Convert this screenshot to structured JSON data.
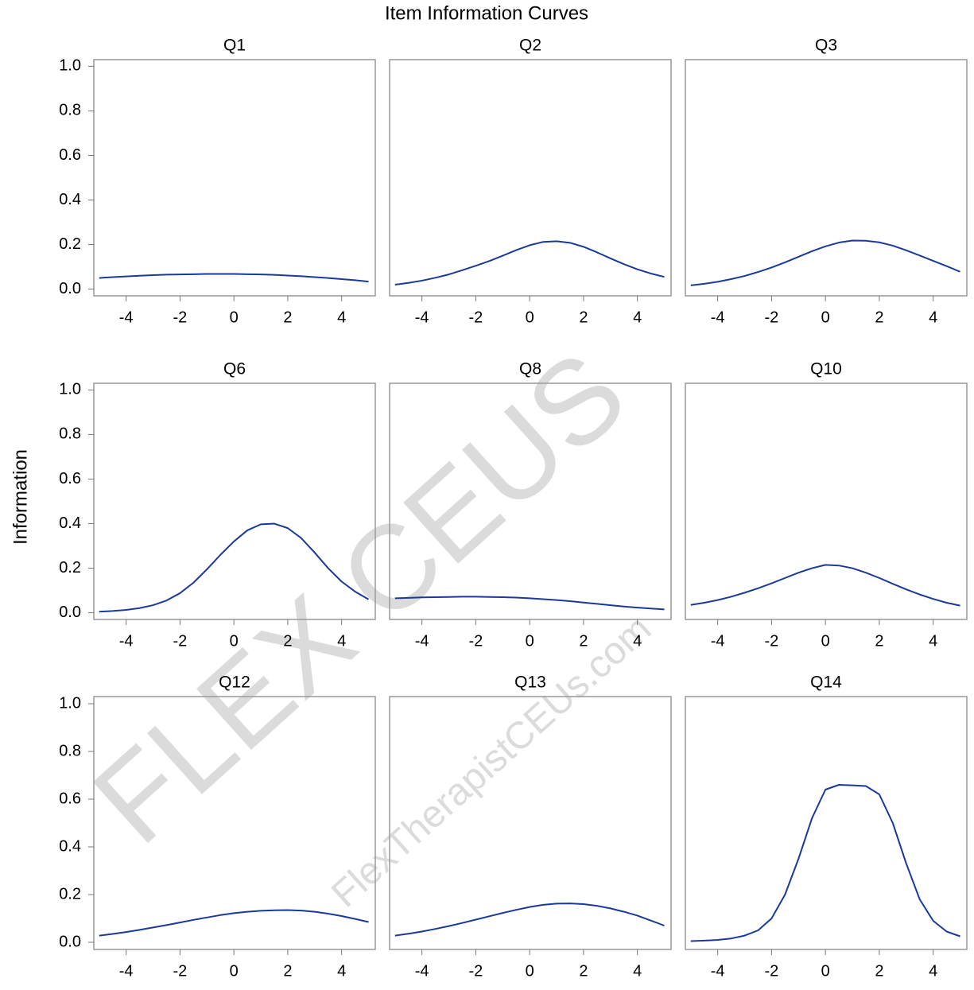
{
  "title": "Item Information Curves",
  "y_label": "Information",
  "watermark": {
    "brand": "FLEX CEUS",
    "site": "FlexTherapistCEUs.com"
  },
  "chart_data": [
    {
      "type": "line",
      "title": "Q1",
      "color": "#1a3a9a",
      "x": [
        -5,
        -4.5,
        -4,
        -3.5,
        -3,
        -2.5,
        -2,
        -1.5,
        -1,
        -0.5,
        0,
        0.5,
        1,
        1.5,
        2,
        2.5,
        3,
        3.5,
        4,
        4.5,
        5
      ],
      "values": [
        0.05,
        0.054,
        0.057,
        0.06,
        0.063,
        0.065,
        0.066,
        0.067,
        0.068,
        0.068,
        0.068,
        0.067,
        0.066,
        0.064,
        0.061,
        0.058,
        0.054,
        0.05,
        0.045,
        0.04,
        0.034
      ],
      "xlim": [
        -5.2,
        5.25
      ],
      "ylim": [
        -0.03,
        1.03
      ],
      "xticks": [
        -4,
        -2,
        0,
        2,
        4
      ],
      "yticks": [
        {
          "value": 0,
          "label": "0.0"
        },
        0.2,
        0.4,
        0.6,
        0.8,
        {
          "value": 1,
          "label": "1.0"
        }
      ]
    },
    {
      "type": "line",
      "title": "Q2",
      "color": "#1a3a9a",
      "x": [
        -5,
        -4.5,
        -4,
        -3.5,
        -3,
        -2.5,
        -2,
        -1.5,
        -1,
        -0.5,
        0,
        0.5,
        1,
        1.5,
        2,
        2.5,
        3,
        3.5,
        4,
        4.5,
        5
      ],
      "values": [
        0.02,
        0.028,
        0.038,
        0.051,
        0.066,
        0.085,
        0.105,
        0.126,
        0.15,
        0.175,
        0.197,
        0.212,
        0.215,
        0.208,
        0.19,
        0.165,
        0.138,
        0.112,
        0.089,
        0.07,
        0.055
      ],
      "xlim": [
        -5.2,
        5.25
      ],
      "ylim": [
        -0.03,
        1.03
      ],
      "xticks": [
        -4,
        -2,
        0,
        2,
        4
      ]
    },
    {
      "type": "line",
      "title": "Q3",
      "color": "#1a3a9a",
      "x": [
        -5,
        -4.5,
        -4,
        -3.5,
        -3,
        -2.5,
        -2,
        -1.5,
        -1,
        -0.5,
        0,
        0.5,
        1,
        1.5,
        2,
        2.5,
        3,
        3.5,
        4,
        4.5,
        5
      ],
      "values": [
        0.017,
        0.024,
        0.033,
        0.045,
        0.059,
        0.077,
        0.097,
        0.12,
        0.145,
        0.17,
        0.192,
        0.209,
        0.218,
        0.217,
        0.21,
        0.195,
        0.174,
        0.151,
        0.127,
        0.103,
        0.078
      ],
      "xlim": [
        -5.2,
        5.25
      ],
      "ylim": [
        -0.03,
        1.03
      ],
      "xticks": [
        -4,
        -2,
        0,
        2,
        4
      ]
    },
    {
      "type": "line",
      "title": "Q6",
      "color": "#1a3a9a",
      "x": [
        -5,
        -4.5,
        -4,
        -3.5,
        -3,
        -2.5,
        -2,
        -1.5,
        -1,
        -0.5,
        0,
        0.5,
        1,
        1.5,
        2,
        2.5,
        3,
        3.5,
        4,
        4.5,
        5
      ],
      "values": [
        0.005,
        0.008,
        0.013,
        0.021,
        0.034,
        0.055,
        0.088,
        0.135,
        0.195,
        0.26,
        0.32,
        0.37,
        0.397,
        0.4,
        0.38,
        0.335,
        0.27,
        0.2,
        0.14,
        0.095,
        0.06
      ],
      "xlim": [
        -5.2,
        5.25
      ],
      "ylim": [
        -0.03,
        1.03
      ],
      "xticks": [
        -4,
        -2,
        0,
        2,
        4
      ],
      "yticks": [
        {
          "value": 0,
          "label": "0.0"
        },
        0.2,
        0.4,
        0.6,
        0.8,
        {
          "value": 1,
          "label": "1.0"
        }
      ]
    },
    {
      "type": "line",
      "title": "Q8",
      "color": "#1a3a9a",
      "x": [
        -5,
        -4.5,
        -4,
        -3.5,
        -3,
        -2.5,
        -2,
        -1.5,
        -1,
        -0.5,
        0,
        0.5,
        1,
        1.5,
        2,
        2.5,
        3,
        3.5,
        4,
        4.5,
        5
      ],
      "values": [
        0.065,
        0.067,
        0.069,
        0.07,
        0.071,
        0.072,
        0.072,
        0.071,
        0.07,
        0.068,
        0.065,
        0.061,
        0.057,
        0.052,
        0.046,
        0.04,
        0.034,
        0.028,
        0.023,
        0.019,
        0.015
      ],
      "xlim": [
        -5.2,
        5.25
      ],
      "ylim": [
        -0.03,
        1.03
      ],
      "xticks": [
        -4,
        -2,
        0,
        2,
        4
      ]
    },
    {
      "type": "line",
      "title": "Q10",
      "color": "#1a3a9a",
      "x": [
        -5,
        -4.5,
        -4,
        -3.5,
        -3,
        -2.5,
        -2,
        -1.5,
        -1,
        -0.5,
        0,
        0.5,
        1,
        1.5,
        2,
        2.5,
        3,
        3.5,
        4,
        4.5,
        5
      ],
      "values": [
        0.035,
        0.045,
        0.057,
        0.072,
        0.09,
        0.11,
        0.132,
        0.156,
        0.18,
        0.2,
        0.215,
        0.212,
        0.2,
        0.18,
        0.156,
        0.13,
        0.105,
        0.082,
        0.062,
        0.045,
        0.032
      ],
      "xlim": [
        -5.2,
        5.25
      ],
      "ylim": [
        -0.03,
        1.03
      ],
      "xticks": [
        -4,
        -2,
        0,
        2,
        4
      ]
    },
    {
      "type": "line",
      "title": "Q12",
      "color": "#1a3a9a",
      "x": [
        -5,
        -4.5,
        -4,
        -3.5,
        -3,
        -2.5,
        -2,
        -1.5,
        -1,
        -0.5,
        0,
        0.5,
        1,
        1.5,
        2,
        2.5,
        3,
        3.5,
        4,
        4.5,
        5
      ],
      "values": [
        0.028,
        0.035,
        0.043,
        0.052,
        0.062,
        0.072,
        0.083,
        0.094,
        0.104,
        0.114,
        0.122,
        0.128,
        0.132,
        0.134,
        0.135,
        0.133,
        0.128,
        0.12,
        0.11,
        0.098,
        0.085
      ],
      "xlim": [
        -5.2,
        5.25
      ],
      "ylim": [
        -0.03,
        1.03
      ],
      "xticks": [
        -4,
        -2,
        0,
        2,
        4
      ],
      "yticks": [
        {
          "value": 0,
          "label": "0.0"
        },
        0.2,
        0.4,
        0.6,
        0.8,
        {
          "value": 1,
          "label": "1.0"
        }
      ]
    },
    {
      "type": "line",
      "title": "Q13",
      "color": "#1a3a9a",
      "x": [
        -5,
        -4.5,
        -4,
        -3.5,
        -3,
        -2.5,
        -2,
        -1.5,
        -1,
        -0.5,
        0,
        0.5,
        1,
        1.5,
        2,
        2.5,
        3,
        3.5,
        4,
        4.5,
        5
      ],
      "values": [
        0.028,
        0.036,
        0.045,
        0.056,
        0.068,
        0.081,
        0.095,
        0.109,
        0.123,
        0.136,
        0.148,
        0.157,
        0.162,
        0.163,
        0.16,
        0.153,
        0.142,
        0.128,
        0.112,
        0.091,
        0.07
      ],
      "xlim": [
        -5.2,
        5.25
      ],
      "ylim": [
        -0.03,
        1.03
      ],
      "xticks": [
        -4,
        -2,
        0,
        2,
        4
      ]
    },
    {
      "type": "line",
      "title": "Q14",
      "color": "#1a3a9a",
      "x": [
        -5,
        -4.5,
        -4,
        -3.5,
        -3,
        -2.5,
        -2,
        -1.5,
        -1,
        -0.5,
        0,
        0.5,
        1,
        1.5,
        2,
        2.5,
        3,
        3.5,
        4,
        4.5,
        5
      ],
      "values": [
        0.005,
        0.007,
        0.01,
        0.016,
        0.028,
        0.05,
        0.1,
        0.2,
        0.35,
        0.52,
        0.64,
        0.66,
        0.658,
        0.655,
        0.62,
        0.5,
        0.33,
        0.18,
        0.09,
        0.045,
        0.025
      ],
      "xlim": [
        -5.2,
        5.25
      ],
      "ylim": [
        -0.03,
        1.03
      ],
      "xticks": [
        -4,
        -2,
        0,
        2,
        4
      ]
    }
  ]
}
